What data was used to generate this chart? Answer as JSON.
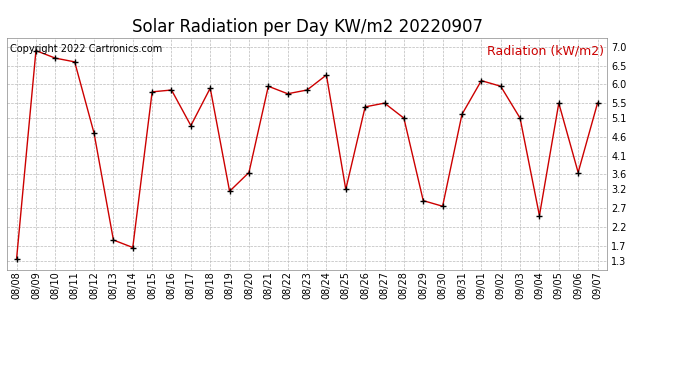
{
  "title": "Solar Radiation per Day KW/m2 20220907",
  "copyright_text": "Copyright 2022 Cartronics.com",
  "legend_label": "Radiation (kW/m2)",
  "dates": [
    "08/08",
    "08/09",
    "08/10",
    "08/11",
    "08/12",
    "08/13",
    "08/14",
    "08/15",
    "08/16",
    "08/17",
    "08/18",
    "08/19",
    "08/20",
    "08/21",
    "08/22",
    "08/23",
    "08/24",
    "08/25",
    "08/26",
    "08/27",
    "08/28",
    "08/29",
    "08/30",
    "08/31",
    "09/01",
    "09/02",
    "09/03",
    "09/04",
    "09/05",
    "09/06",
    "09/07"
  ],
  "values": [
    1.35,
    6.9,
    6.7,
    6.6,
    4.7,
    1.85,
    1.65,
    5.8,
    5.85,
    4.9,
    5.9,
    3.15,
    3.65,
    5.95,
    5.75,
    5.85,
    6.25,
    3.2,
    5.4,
    5.5,
    5.1,
    2.9,
    2.75,
    5.2,
    6.1,
    5.95,
    5.1,
    2.5,
    5.5,
    3.65,
    5.5
  ],
  "line_color": "#cc0000",
  "marker_color": "#000000",
  "grid_color": "#bbbbbb",
  "bg_color": "#ffffff",
  "title_fontsize": 12,
  "copyright_fontsize": 7,
  "legend_fontsize": 9,
  "tick_fontsize": 7,
  "yticks": [
    1.3,
    1.7,
    2.2,
    2.7,
    3.2,
    3.6,
    4.1,
    4.6,
    5.1,
    5.5,
    6.0,
    6.5,
    7.0
  ],
  "ylim": [
    1.05,
    7.25
  ],
  "fig_width": 6.9,
  "fig_height": 3.75,
  "dpi": 100
}
